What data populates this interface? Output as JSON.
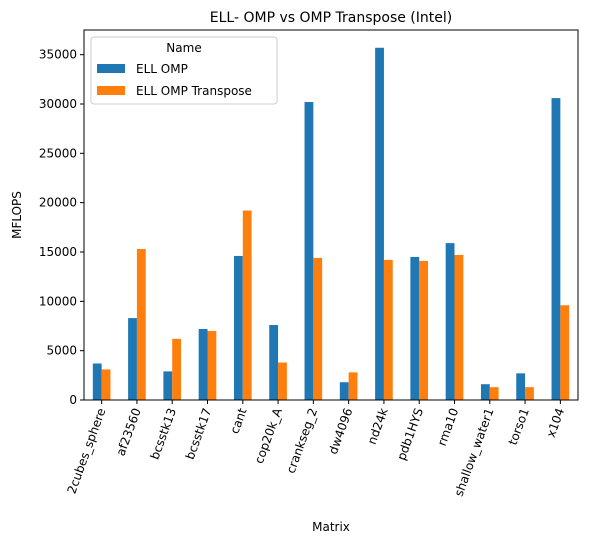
{
  "chart_data": {
    "type": "bar",
    "title": "ELL- OMP vs OMP Transpose (Intel)",
    "xlabel": "Matrix",
    "ylabel": "MFLOPS",
    "ylim": [
      0,
      37500
    ],
    "yticks": [
      0,
      5000,
      10000,
      15000,
      20000,
      25000,
      30000,
      35000
    ],
    "grid": false,
    "legend": {
      "title": "Name",
      "placement": "top-left"
    },
    "categories": [
      "2cubes_sphere",
      "af23560",
      "bcsstk13",
      "bcsstk17",
      "cant",
      "cop20k_A",
      "crankseg_2",
      "dw4096",
      "nd24k",
      "pdb1HYS",
      "rma10",
      "shallow_water1",
      "torso1",
      "x104"
    ],
    "series": [
      {
        "name": "ELL OMP",
        "color": "#1f77b4",
        "values": [
          3700,
          8300,
          2900,
          7200,
          14600,
          7600,
          30200,
          1800,
          35700,
          14500,
          15900,
          1600,
          2700,
          30600
        ]
      },
      {
        "name": "ELL OMP Transpose",
        "color": "#ff7f0e",
        "values": [
          3100,
          15300,
          6200,
          7000,
          19200,
          3800,
          14400,
          2800,
          14200,
          14100,
          14700,
          1300,
          1300,
          9600
        ]
      }
    ]
  }
}
